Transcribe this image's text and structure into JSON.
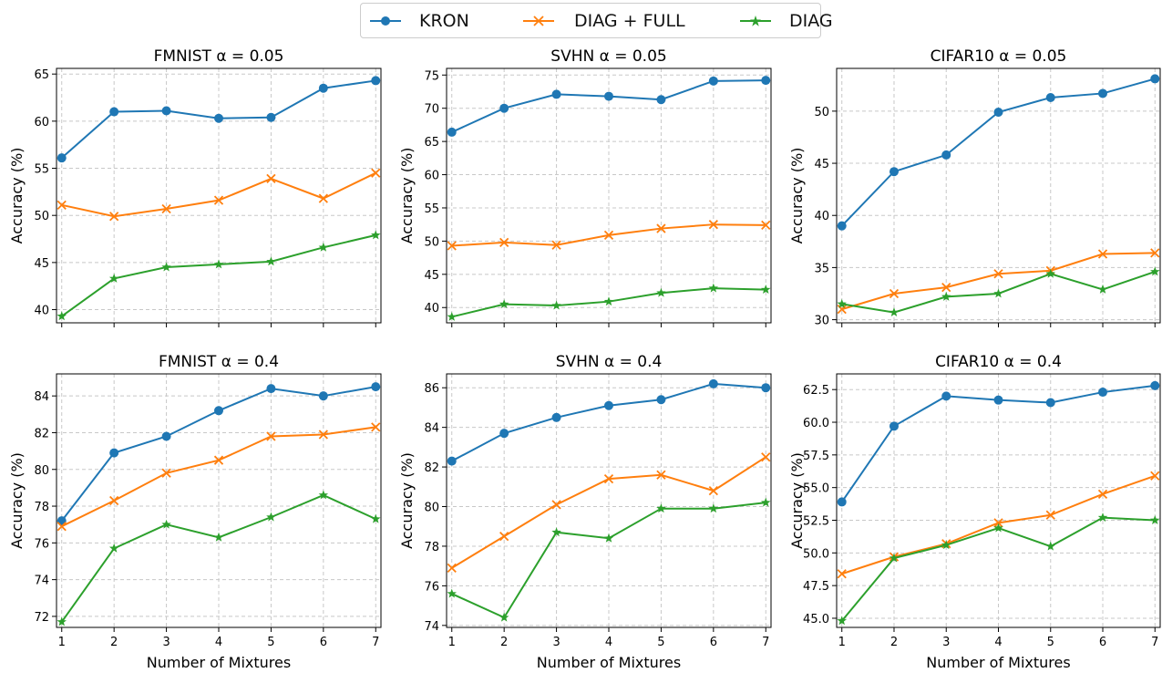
{
  "legend": {
    "entries": [
      {
        "label": "KRON",
        "color": "#1f77b4",
        "marker": "circle"
      },
      {
        "label": "DIAG + FULL",
        "color": "#ff7f0e",
        "marker": "x"
      },
      {
        "label": "DIAG",
        "color": "#2ca02c",
        "marker": "star"
      }
    ]
  },
  "chart_data": [
    {
      "type": "line",
      "title": "FMNIST α = 0.05",
      "xlabel": "",
      "ylabel": "Accuracy (%)",
      "x": [
        1,
        2,
        3,
        4,
        5,
        6,
        7
      ],
      "xlim": [
        0.9,
        7.1
      ],
      "ylim": [
        38.6,
        65.6
      ],
      "yticks": [
        40,
        45,
        50,
        55,
        60,
        65
      ],
      "ytick_labels": [
        "40",
        "45",
        "50",
        "55",
        "60",
        "65"
      ],
      "xtick_labels": [],
      "grid": true,
      "series": [
        {
          "name": "KRON",
          "values": [
            56.1,
            61.0,
            61.1,
            60.3,
            60.4,
            63.5,
            64.3
          ]
        },
        {
          "name": "DIAG + FULL",
          "values": [
            51.1,
            49.9,
            50.7,
            51.6,
            53.9,
            51.8,
            54.5
          ]
        },
        {
          "name": "DIAG",
          "values": [
            39.3,
            43.3,
            44.5,
            44.8,
            45.1,
            46.6,
            47.9
          ]
        }
      ]
    },
    {
      "type": "line",
      "title": "SVHN α = 0.05",
      "xlabel": "",
      "ylabel": "Accuracy (%)",
      "x": [
        1,
        2,
        3,
        4,
        5,
        6,
        7
      ],
      "xlim": [
        0.9,
        7.1
      ],
      "ylim": [
        37.7,
        76.0
      ],
      "yticks": [
        40,
        45,
        50,
        55,
        60,
        65,
        70,
        75
      ],
      "ytick_labels": [
        "40",
        "45",
        "50",
        "55",
        "60",
        "65",
        "70",
        "75"
      ],
      "xtick_labels": [],
      "grid": true,
      "series": [
        {
          "name": "KRON",
          "values": [
            66.4,
            70.0,
            72.1,
            71.8,
            71.3,
            74.1,
            74.2
          ]
        },
        {
          "name": "DIAG + FULL",
          "values": [
            49.3,
            49.8,
            49.4,
            50.9,
            51.9,
            52.5,
            52.4
          ]
        },
        {
          "name": "DIAG",
          "values": [
            38.6,
            40.5,
            40.3,
            40.9,
            42.2,
            42.9,
            42.7
          ]
        }
      ]
    },
    {
      "type": "line",
      "title": "CIFAR10 α = 0.05",
      "xlabel": "",
      "ylabel": "Accuracy (%)",
      "x": [
        1,
        2,
        3,
        4,
        5,
        6,
        7
      ],
      "xlim": [
        0.9,
        7.1
      ],
      "ylim": [
        29.7,
        54.1
      ],
      "yticks": [
        30,
        35,
        40,
        45,
        50
      ],
      "ytick_labels": [
        "30",
        "35",
        "40",
        "45",
        "50"
      ],
      "xtick_labels": [],
      "grid": true,
      "series": [
        {
          "name": "KRON",
          "values": [
            39.0,
            44.2,
            45.8,
            49.9,
            51.3,
            51.7,
            53.1
          ]
        },
        {
          "name": "DIAG + FULL",
          "values": [
            31.0,
            32.5,
            33.1,
            34.4,
            34.7,
            36.3,
            36.4
          ]
        },
        {
          "name": "DIAG",
          "values": [
            31.5,
            30.7,
            32.2,
            32.5,
            34.4,
            32.9,
            34.6
          ]
        }
      ]
    },
    {
      "type": "line",
      "title": "FMNIST α = 0.4",
      "xlabel": "Number of Mixtures",
      "ylabel": "Accuracy (%)",
      "x": [
        1,
        2,
        3,
        4,
        5,
        6,
        7
      ],
      "xlim": [
        0.9,
        7.1
      ],
      "ylim": [
        71.4,
        85.2
      ],
      "yticks": [
        72,
        74,
        76,
        78,
        80,
        82,
        84
      ],
      "ytick_labels": [
        "72",
        "74",
        "76",
        "78",
        "80",
        "82",
        "84"
      ],
      "xtick_labels": [
        "1",
        "2",
        "3",
        "4",
        "5",
        "6",
        "7"
      ],
      "grid": true,
      "series": [
        {
          "name": "KRON",
          "values": [
            77.2,
            80.9,
            81.8,
            83.2,
            84.4,
            84.0,
            84.5
          ]
        },
        {
          "name": "DIAG + FULL",
          "values": [
            76.9,
            78.3,
            79.8,
            80.5,
            81.8,
            81.9,
            82.3
          ]
        },
        {
          "name": "DIAG",
          "values": [
            71.7,
            75.7,
            77.0,
            76.3,
            77.4,
            78.6,
            77.3
          ]
        }
      ]
    },
    {
      "type": "line",
      "title": "SVHN α = 0.4",
      "xlabel": "Number of Mixtures",
      "ylabel": "Accuracy (%)",
      "x": [
        1,
        2,
        3,
        4,
        5,
        6,
        7
      ],
      "xlim": [
        0.9,
        7.1
      ],
      "ylim": [
        73.9,
        86.7
      ],
      "yticks": [
        74,
        76,
        78,
        80,
        82,
        84,
        86
      ],
      "ytick_labels": [
        "74",
        "76",
        "78",
        "80",
        "82",
        "84",
        "86"
      ],
      "xtick_labels": [
        "1",
        "2",
        "3",
        "4",
        "5",
        "6",
        "7"
      ],
      "grid": true,
      "series": [
        {
          "name": "KRON",
          "values": [
            82.3,
            83.7,
            84.5,
            85.1,
            85.4,
            86.2,
            86.0
          ]
        },
        {
          "name": "DIAG + FULL",
          "values": [
            76.9,
            78.5,
            80.1,
            81.4,
            81.6,
            80.8,
            82.5
          ]
        },
        {
          "name": "DIAG",
          "values": [
            75.6,
            74.4,
            78.7,
            78.4,
            79.9,
            79.9,
            80.2
          ]
        }
      ]
    },
    {
      "type": "line",
      "title": "CIFAR10 α = 0.4",
      "xlabel": "Number of Mixtures",
      "ylabel": "Accuracy (%)",
      "x": [
        1,
        2,
        3,
        4,
        5,
        6,
        7
      ],
      "xlim": [
        0.9,
        7.1
      ],
      "ylim": [
        44.3,
        63.7
      ],
      "yticks": [
        45.0,
        47.5,
        50.0,
        52.5,
        55.0,
        57.5,
        60.0,
        62.5
      ],
      "ytick_labels": [
        "45.0",
        "47.5",
        "50.0",
        "52.5",
        "55.0",
        "57.5",
        "60.0",
        "62.5"
      ],
      "xtick_labels": [
        "1",
        "2",
        "3",
        "4",
        "5",
        "6",
        "7"
      ],
      "grid": true,
      "series": [
        {
          "name": "KRON",
          "values": [
            53.9,
            59.7,
            62.0,
            61.7,
            61.5,
            62.3,
            62.8
          ]
        },
        {
          "name": "DIAG + FULL",
          "values": [
            48.4,
            49.7,
            50.7,
            52.3,
            52.9,
            54.5,
            55.9
          ]
        },
        {
          "name": "DIAG",
          "values": [
            44.8,
            49.6,
            50.6,
            51.9,
            50.5,
            52.7,
            52.5
          ]
        }
      ]
    }
  ]
}
